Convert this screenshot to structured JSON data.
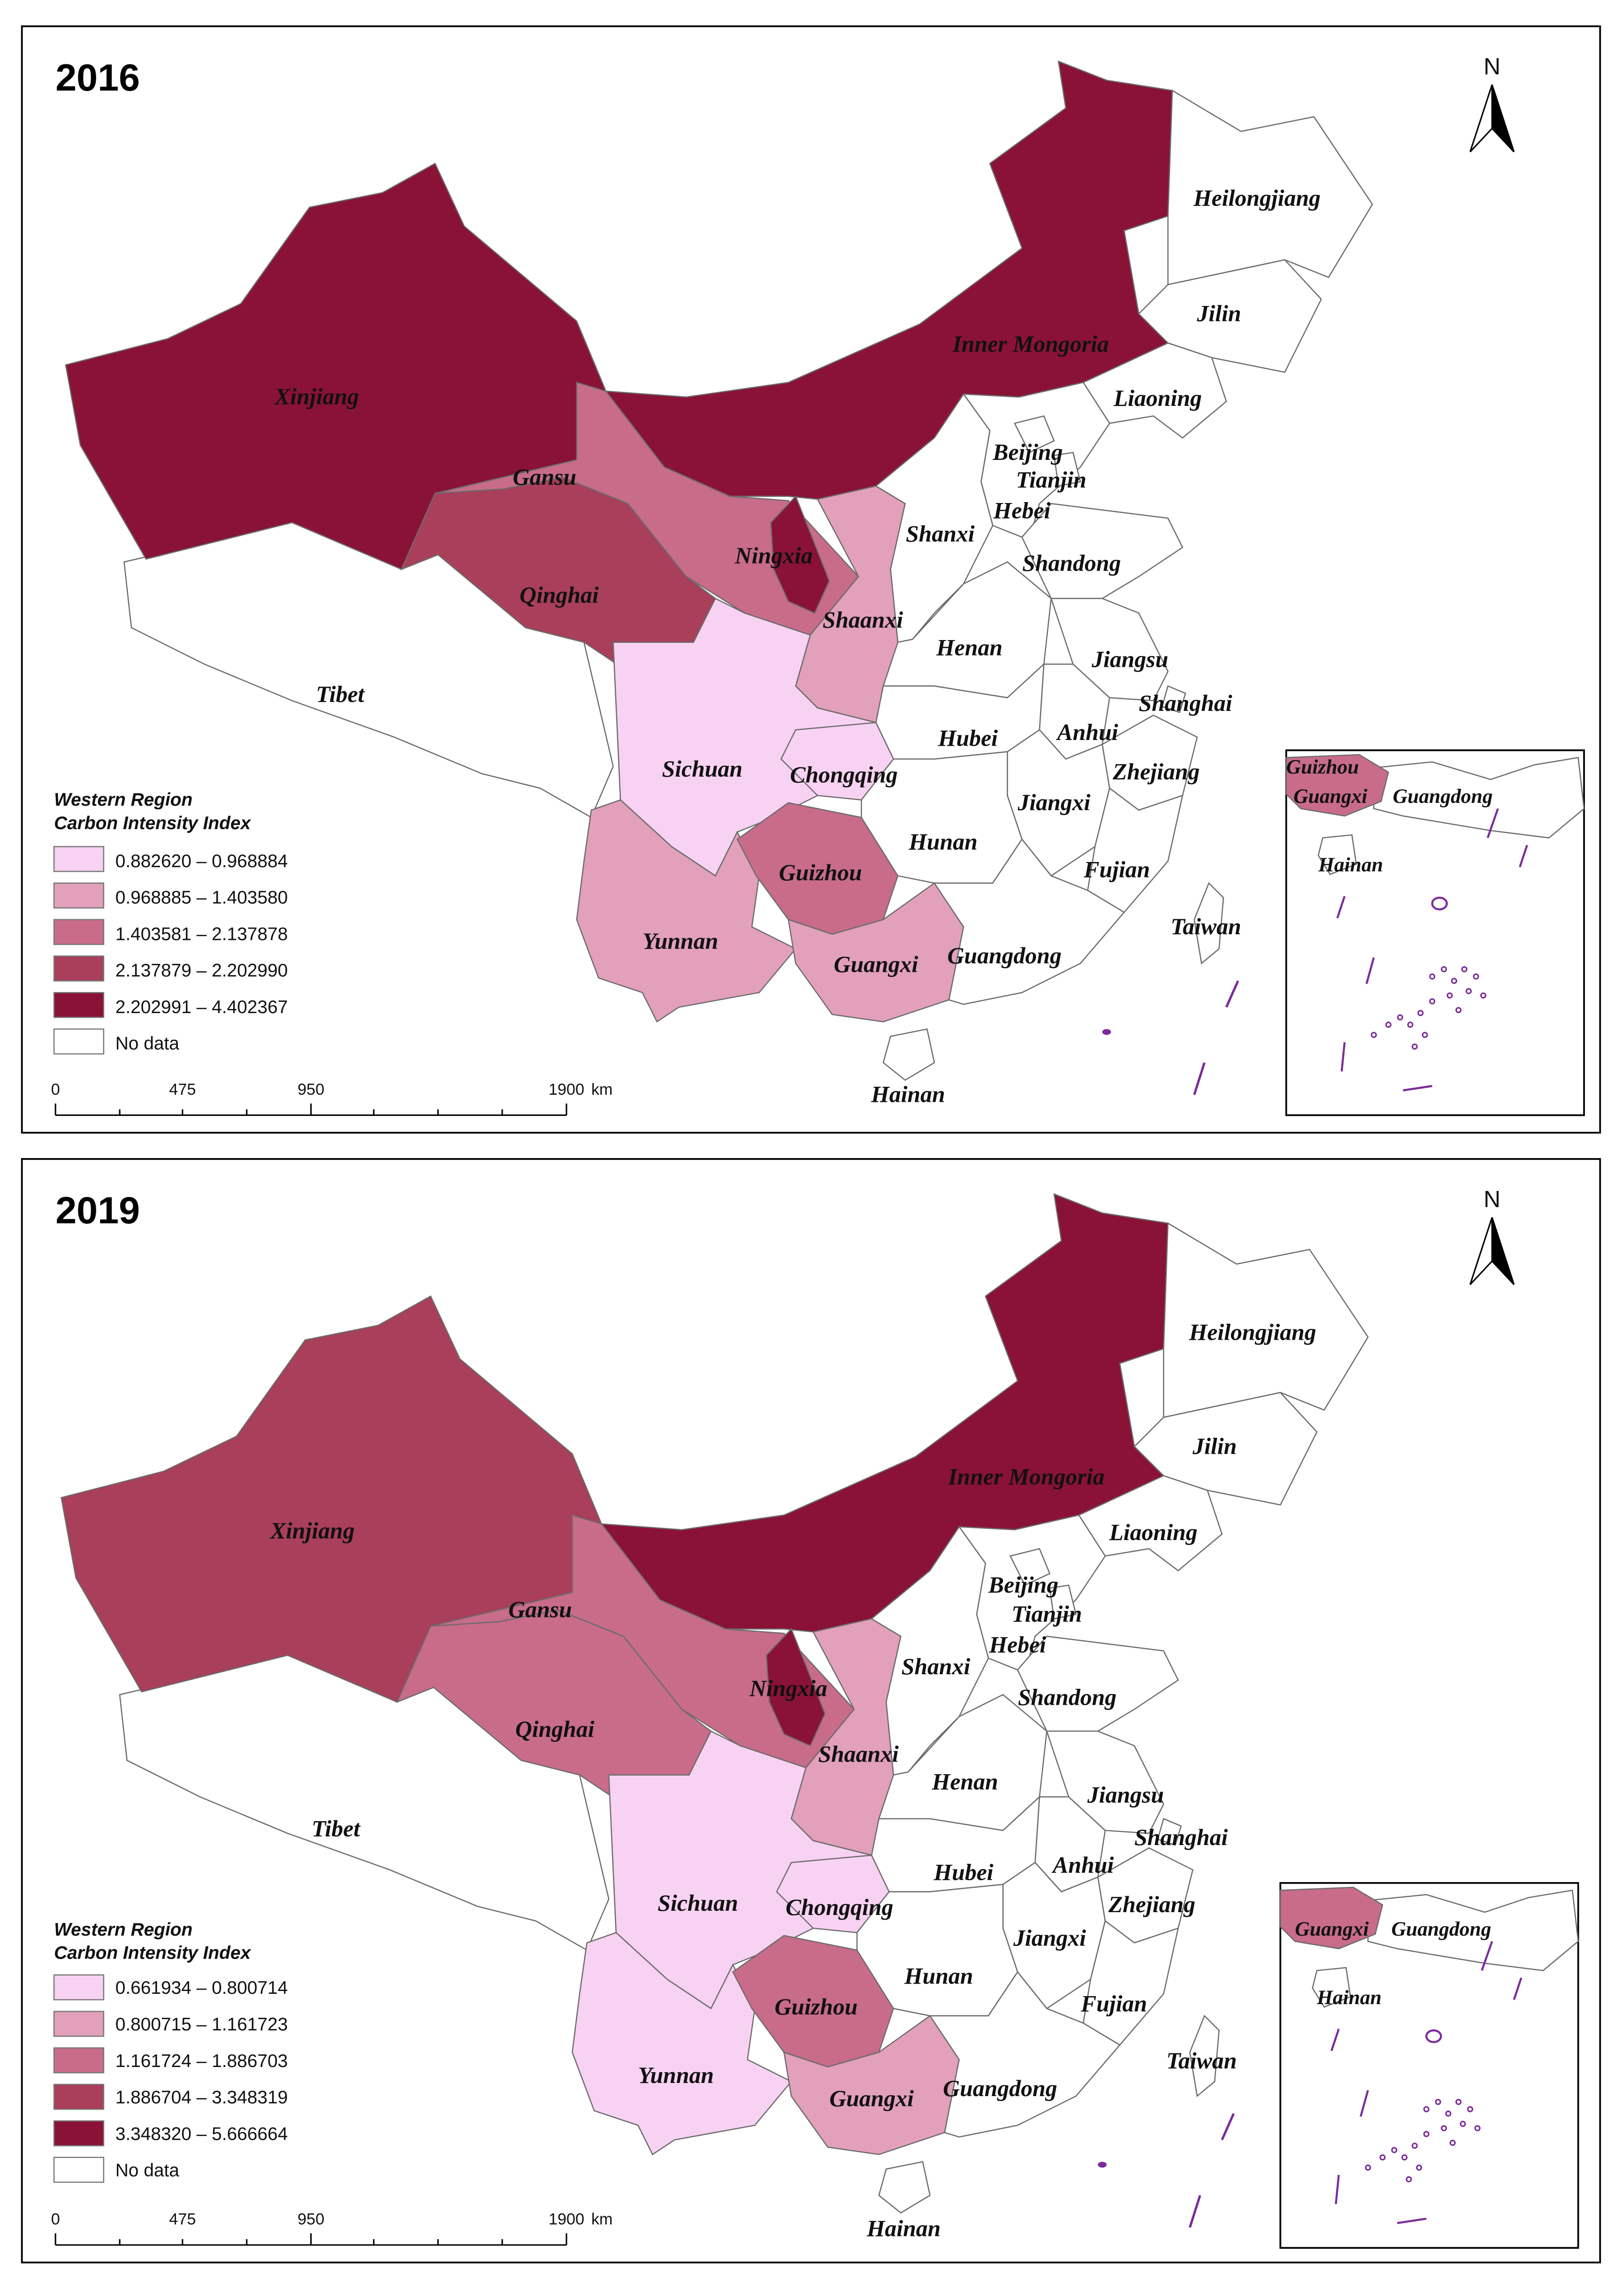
{
  "colors": {
    "class1": "#f8d2f2",
    "class2": "#e2a0ba",
    "class3": "#c86c8a",
    "class4": "#a93f5a",
    "class5": "#8a1237",
    "nodata": "#ffffff",
    "outline": "#6b6b6b",
    "islands": "#7b2a9b"
  },
  "north_label": "N",
  "scale_bar": {
    "ticks": [
      "0",
      "475",
      "950",
      "1900"
    ],
    "unit": "km"
  },
  "legend": {
    "title_line1": "Western Region",
    "title_line2": "Carbon Intensity Index",
    "no_data": "No data"
  },
  "inset_labels": {
    "a": "Guizhou",
    "b": "Guangxi",
    "c": "Guangdong",
    "d": "Hainan"
  },
  "maps": [
    {
      "year": "2016",
      "classes": [
        "0.882620 – 0.968884",
        "0.968885 – 1.403580",
        "1.403581 – 2.137878",
        "2.137879 – 2.202990",
        "2.202991 – 4.402367"
      ],
      "provinces": {
        "Xinjiang": "class5",
        "Inner Mongoria": "class5",
        "Ningxia": "class5",
        "Qinghai": "class4",
        "Gansu": "class3",
        "Guizhou": "class3",
        "Shaanxi": "class2",
        "Yunnan": "class2",
        "Guangxi": "class2",
        "Sichuan": "class1",
        "Chongqing": "class1"
      },
      "inset_names": [
        "Guizhou",
        "Guangxi",
        "Guangdong",
        "Hainan"
      ]
    },
    {
      "year": "2019",
      "classes": [
        "0.661934 – 0.800714",
        "0.800715 – 1.161723",
        "1.161724 – 1.886703",
        "1.886704 – 3.348319",
        "3.348320 – 5.666664"
      ],
      "provinces": {
        "Xinjiang": "class4",
        "Inner Mongoria": "class5",
        "Ningxia": "class5",
        "Qinghai": "class3",
        "Gansu": "class3",
        "Guizhou": "class3",
        "Shaanxi": "class2",
        "Yunnan": "class1",
        "Guangxi": "class2",
        "Sichuan": "class1",
        "Chongqing": "class1"
      },
      "inset_names": [
        "Guangxi",
        "Guangdong",
        "Hainan"
      ]
    }
  ],
  "province_names": {
    "Xinjiang": "Xinjiang",
    "Tibet": "Tibet",
    "Qinghai": "Qinghai",
    "Gansu": "Gansu",
    "Ningxia": "Ningxia",
    "Inner Mongoria": "Inner Mongoria",
    "Shaanxi": "Shaanxi",
    "Sichuan": "Sichuan",
    "Chongqing": "Chongqing",
    "Yunnan": "Yunnan",
    "Guizhou": "Guizhou",
    "Guangxi": "Guangxi",
    "Heilongjiang": "Heilongjiang",
    "Jilin": "Jilin",
    "Liaoning": "Liaoning",
    "Beijing": "Beijing",
    "Tianjin": "Tianjin",
    "Hebei": "Hebei",
    "Shanxi": "Shanxi",
    "Shandong": "Shandong",
    "Henan": "Henan",
    "Jiangsu": "Jiangsu",
    "Shanghai": "Shanghai",
    "Anhui": "Anhui",
    "Hubei": "Hubei",
    "Zhejiang": "Zhejiang",
    "Jiangxi": "Jiangxi",
    "Hunan": "Hunan",
    "Fujian": "Fujian",
    "Taiwan": "Taiwan",
    "Guangdong": "Guangdong",
    "Hainan": "Hainan"
  }
}
